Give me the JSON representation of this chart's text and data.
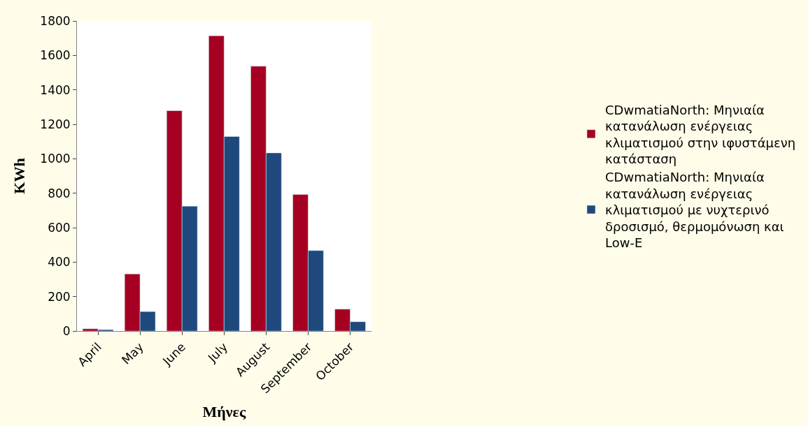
{
  "chart_data": {
    "type": "bar",
    "xlabel": "Μήνες",
    "ylabel": "KWh",
    "categories": [
      "April",
      "May",
      "June",
      "July",
      "August",
      "September",
      "October"
    ],
    "series": [
      {
        "name": "CDwmatiaNorth: Μηνιαία κατανάλωση ενέργειας κλιματισμού στην ιφυστάμενη κατάσταση",
        "color": "#a50021",
        "values": [
          13,
          331,
          1279,
          1714,
          1537,
          793,
          127
        ]
      },
      {
        "name": "CDwmatiaNorth: Μηνιαία κατανάλωση ενέργειας κλιματισμού με νυχτερινό δροσισμό, θερμομόνωση και Low-E",
        "color": "#1f497d",
        "values": [
          8,
          113,
          725,
          1129,
          1034,
          467,
          54
        ]
      }
    ],
    "ylim": [
      0,
      1800
    ],
    "yticks": [
      0,
      200,
      400,
      600,
      800,
      1000,
      1200,
      1400,
      1600,
      1800
    ],
    "grid": false,
    "legend": "right"
  }
}
